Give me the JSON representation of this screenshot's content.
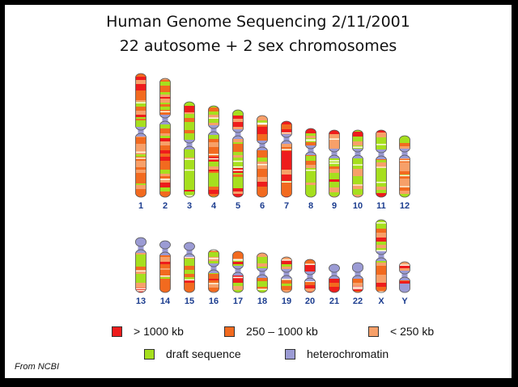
{
  "title": {
    "line1": "Human Genome Sequencing 2/11/2001",
    "line2": "22 autosome  + 2 sex chromosomes"
  },
  "colors": {
    "large_kb": "#ee1c1c",
    "medium_kb": "#f26a1f",
    "small_kb": "#f7a069",
    "draft": "#a6df1e",
    "heterochromatin": "#9b9bd4"
  },
  "chromosomes": [
    {
      "label": "1"
    },
    {
      "label": "2"
    },
    {
      "label": "3"
    },
    {
      "label": "4"
    },
    {
      "label": "5"
    },
    {
      "label": "6"
    },
    {
      "label": "7"
    },
    {
      "label": "8"
    },
    {
      "label": "9"
    },
    {
      "label": "10"
    },
    {
      "label": "11"
    },
    {
      "label": "12"
    },
    {
      "label": "13"
    },
    {
      "label": "14"
    },
    {
      "label": "15"
    },
    {
      "label": "16"
    },
    {
      "label": "17"
    },
    {
      "label": "18"
    },
    {
      "label": "19"
    },
    {
      "label": "20"
    },
    {
      "label": "21"
    },
    {
      "label": "22"
    },
    {
      "label": "X"
    },
    {
      "label": "Y"
    }
  ],
  "legend": [
    {
      "label": "> 1000 kb",
      "color_key": "large_kb"
    },
    {
      "label": "250 – 1000 kb",
      "color_key": "medium_kb"
    },
    {
      "label": "< 250 kb",
      "color_key": "small_kb"
    },
    {
      "label": "draft sequence",
      "color_key": "draft"
    },
    {
      "label": "heterochromatin",
      "color_key": "heterochromatin"
    }
  ],
  "source": "From NCBI"
}
